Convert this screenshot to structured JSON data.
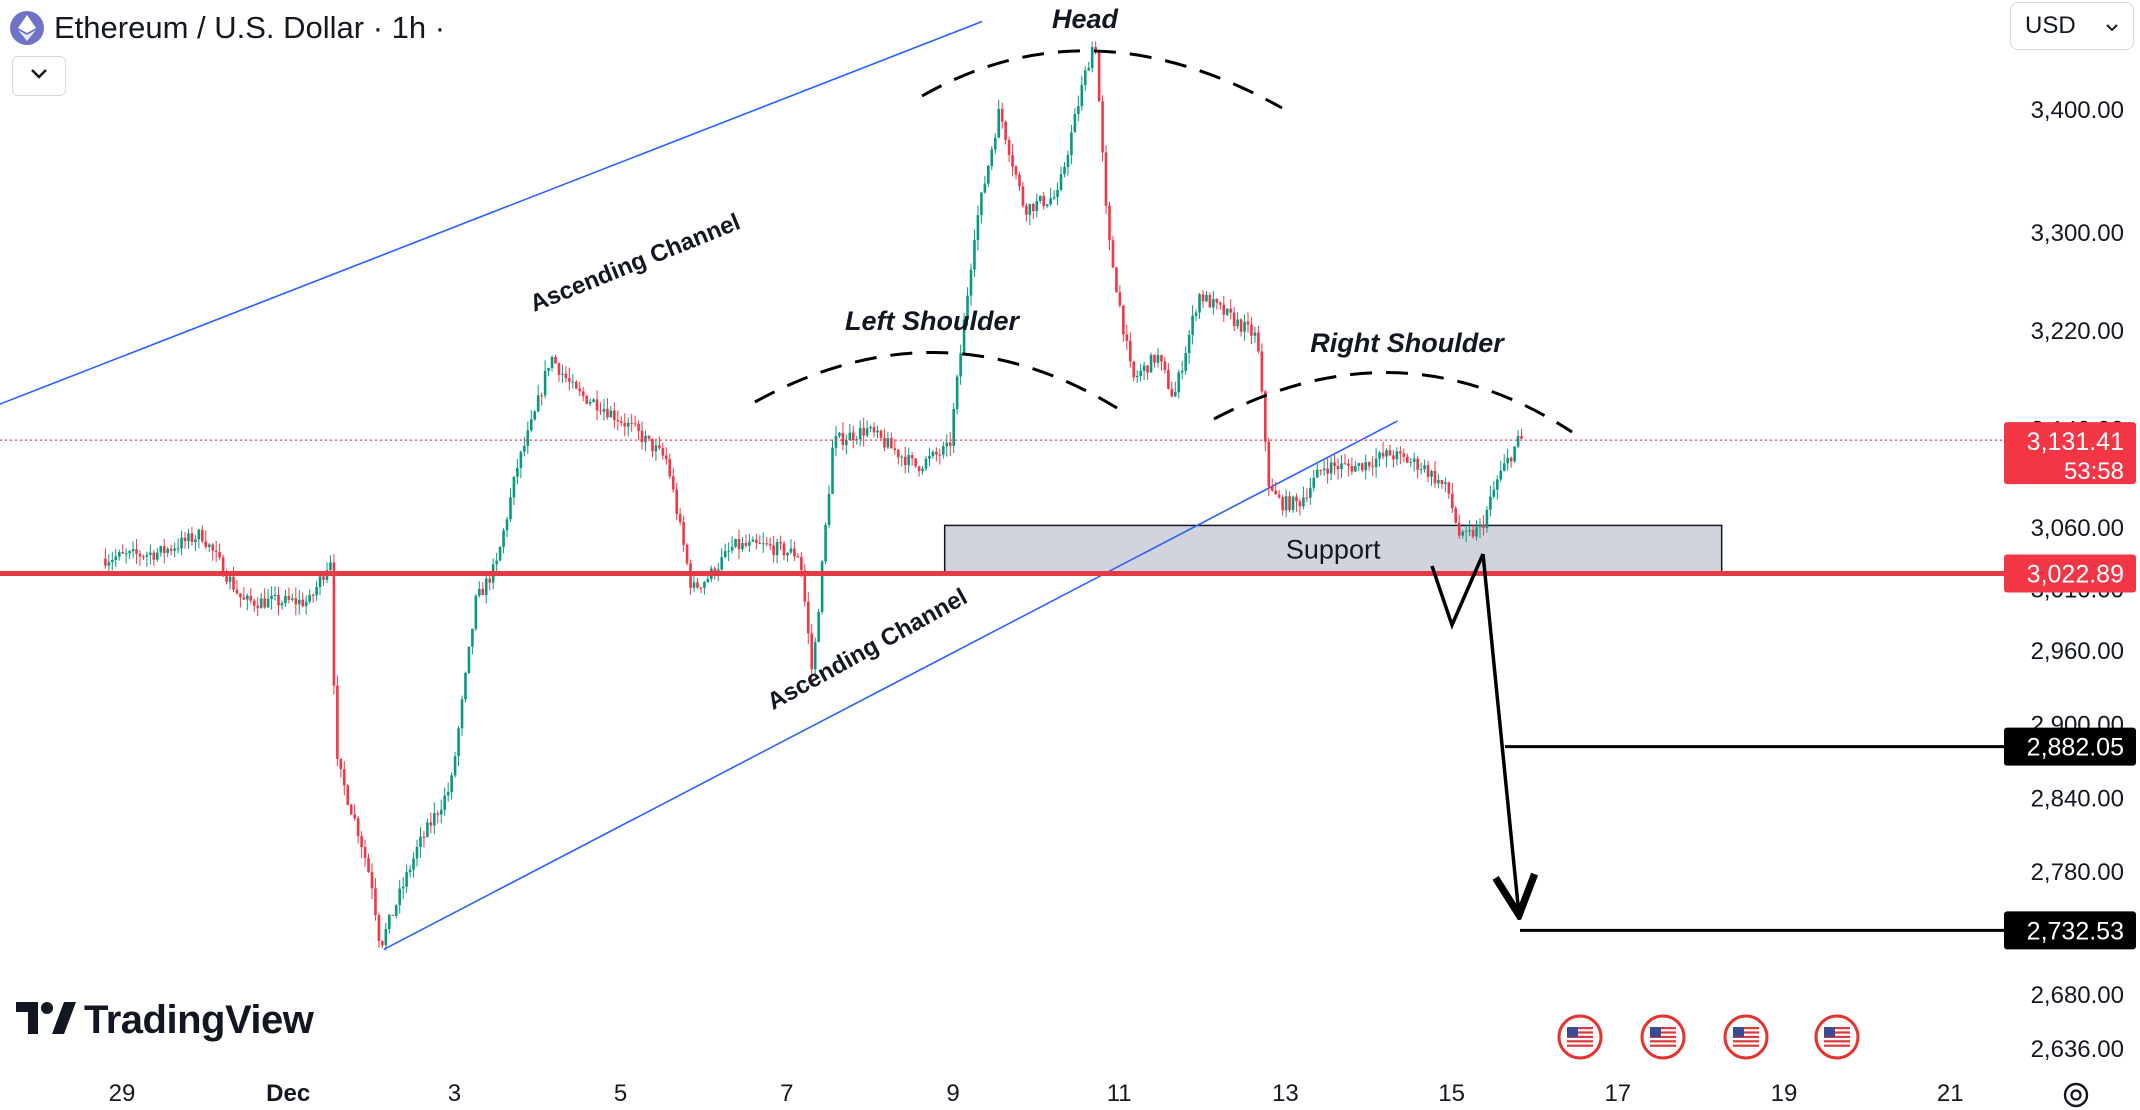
{
  "header": {
    "title": "Ethereum / U.S. Dollar · 1h ·",
    "icon": "ethereum-icon",
    "collapse_icon": "chevron-down-icon"
  },
  "currency_selector": {
    "value": "USD",
    "icon": "chevron-down-icon"
  },
  "logo": {
    "text": "TradingView"
  },
  "settings_icon": "gear-icon",
  "event_icons": [
    "us-flag-icon",
    "us-flag-icon",
    "us-flag-icon",
    "us-flag-icon"
  ],
  "colors": {
    "up": "#089981",
    "down": "#f23645",
    "channel": "#2962ff",
    "support_line": "#e53945",
    "support_box": "#d1d4dc",
    "price_tag": "#f23645",
    "dark_tag": "#000000"
  },
  "chart_data": {
    "type": "candlestick",
    "title": "Ethereum / U.S. Dollar · 1h ·",
    "y_ticks": [
      "3,400.00",
      "3,300.00",
      "3,220.00",
      "3,140.00",
      "3,060.00",
      "3,010.00",
      "2,960.00",
      "2,900.00",
      "2,840.00",
      "2,780.00",
      "2,680.00",
      "2,636.00"
    ],
    "y_tick_values": [
      3400,
      3300,
      3220,
      3140,
      3060,
      3010,
      2960,
      2900,
      2840,
      2780,
      2680,
      2636
    ],
    "x_ticks": [
      "29",
      "Dec",
      "3",
      "5",
      "7",
      "9",
      "11",
      "13",
      "15",
      "17",
      "19",
      "21"
    ],
    "x_tick_days": [
      -2,
      0,
      2,
      4,
      6,
      8,
      10,
      12,
      14,
      16,
      18,
      20
    ],
    "last_price": {
      "value": "3,131.41",
      "countdown": "53:58",
      "value_num": 3131.41
    },
    "support_level": {
      "value": "3,022.89",
      "value_num": 3022.89
    },
    "targets": [
      {
        "label": "2,882.05",
        "value": 2882.05
      },
      {
        "label": "2,732.53",
        "value": 2732.53
      }
    ],
    "support_zone": {
      "label": "Support",
      "top": 3062,
      "bottom": 3023,
      "from_day": 7.9,
      "to_day": 17.25
    },
    "annotations": {
      "head": "Head",
      "left_shoulder": "Left Shoulder",
      "right_shoulder": "Right Shoulder",
      "channel_upper": "Ascending Channel",
      "channel_lower": "Ascending Channel"
    },
    "channel": {
      "upper": [
        [
          -6.8,
          3073
        ],
        [
          8.35,
          3472
        ]
      ],
      "lower": [
        [
          1.15,
          2717
        ],
        [
          13.35,
          3147
        ]
      ]
    },
    "path": [
      [
        -2.2,
        3035
      ],
      [
        -1.5,
        3040
      ],
      [
        -1.0,
        3055
      ],
      [
        -0.5,
        3000
      ],
      [
        0.3,
        3000
      ],
      [
        0.55,
        3035
      ],
      [
        0.62,
        2870
      ],
      [
        0.9,
        2810
      ],
      [
        1.05,
        2770
      ],
      [
        1.15,
        2720
      ],
      [
        1.6,
        2800
      ],
      [
        2.0,
        2850
      ],
      [
        2.3,
        3000
      ],
      [
        2.55,
        3030
      ],
      [
        2.8,
        3110
      ],
      [
        3.0,
        3150
      ],
      [
        3.2,
        3200
      ],
      [
        3.5,
        3170
      ],
      [
        3.8,
        3160
      ],
      [
        4.2,
        3140
      ],
      [
        4.6,
        3115
      ],
      [
        4.9,
        3010
      ],
      [
        5.1,
        3020
      ],
      [
        5.4,
        3045
      ],
      [
        5.8,
        3045
      ],
      [
        6.2,
        3038
      ],
      [
        6.35,
        2940
      ],
      [
        6.6,
        3130
      ],
      [
        7.0,
        3140
      ],
      [
        7.6,
        3110
      ],
      [
        8.0,
        3125
      ],
      [
        8.3,
        3300
      ],
      [
        8.6,
        3400
      ],
      [
        8.9,
        3320
      ],
      [
        9.3,
        3330
      ],
      [
        9.6,
        3420
      ],
      [
        9.75,
        3460
      ],
      [
        9.9,
        3300
      ],
      [
        10.2,
        3180
      ],
      [
        10.5,
        3200
      ],
      [
        10.7,
        3165
      ],
      [
        11.0,
        3250
      ],
      [
        11.4,
        3230
      ],
      [
        11.7,
        3215
      ],
      [
        11.85,
        3090
      ],
      [
        12.0,
        3080
      ],
      [
        12.2,
        3080
      ],
      [
        12.5,
        3110
      ],
      [
        12.9,
        3110
      ],
      [
        13.3,
        3120
      ],
      [
        13.7,
        3110
      ],
      [
        14.0,
        3090
      ],
      [
        14.15,
        3050
      ],
      [
        14.4,
        3060
      ],
      [
        14.6,
        3100
      ],
      [
        14.85,
        3131.41
      ]
    ]
  }
}
